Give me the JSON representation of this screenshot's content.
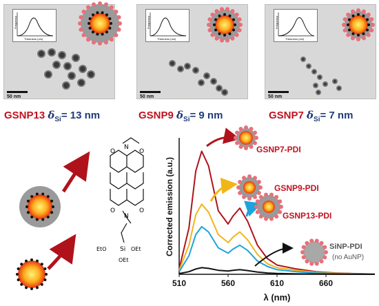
{
  "panels": [
    {
      "sample": "GSNP13",
      "delta_sub": "Si",
      "thickness": "= 13 nm",
      "scale": "50 nm",
      "inset_ylabel": "Frequency",
      "inset_xlabel": "Thickness (nm)",
      "inset_ticks": [
        "9",
        "11",
        "13",
        "15",
        "17"
      ]
    },
    {
      "sample": "GSNP9",
      "delta_sub": "Si",
      "thickness": "= 9 nm",
      "scale": "50 nm",
      "inset_ylabel": "Frequency",
      "inset_xlabel": "Thickness (nm)",
      "inset_ticks": [
        "5",
        "7",
        "9",
        "11"
      ]
    },
    {
      "sample": "GSNP7",
      "delta_sub": "Si",
      "thickness": "= 7 nm",
      "scale": "50 nm",
      "inset_ylabel": "Frequency",
      "inset_xlabel": "Thickness (nm)",
      "inset_ticks": [
        "4",
        "6",
        "8",
        "10"
      ]
    }
  ],
  "delta_symbol": "δ",
  "molecule": {
    "ring_O": "O",
    "N_top": "N",
    "N_bottom": "N",
    "Si": "Si",
    "OEt_left": "EtO",
    "OEt_right": "OEt",
    "OEt_bottom": "OEt"
  },
  "annotations": {
    "gsnp7": "GSNP7-PDI",
    "gsnp9": "GSNP9-PDI",
    "gsnp13": "GSNP13-PDI",
    "sinp": "SiNP-PDI",
    "sinp_note": "(no AuNP)"
  },
  "chart_data": {
    "type": "line",
    "xlabel": "λ (nm)",
    "ylabel": "Corrected emission (a.u.)",
    "xlim": [
      510,
      710
    ],
    "ylim": [
      0,
      1.0
    ],
    "xticks": [
      510,
      560,
      610,
      660
    ],
    "series": [
      {
        "name": "GSNP7-PDI",
        "color": "#b0121b",
        "x": [
          510,
          520,
          527,
          533,
          540,
          550,
          560,
          565,
          572,
          580,
          590,
          600,
          610,
          630,
          650,
          670,
          690,
          710
        ],
        "y": [
          0.04,
          0.35,
          0.78,
          0.93,
          0.82,
          0.48,
          0.38,
          0.44,
          0.5,
          0.4,
          0.22,
          0.12,
          0.07,
          0.04,
          0.02,
          0.01,
          0.005,
          0.002
        ]
      },
      {
        "name": "GSNP9-PDI",
        "color": "#f0b619",
        "x": [
          510,
          520,
          527,
          533,
          540,
          550,
          560,
          565,
          572,
          580,
          590,
          600,
          610,
          630,
          650,
          670,
          690,
          710
        ],
        "y": [
          0.03,
          0.22,
          0.45,
          0.53,
          0.47,
          0.3,
          0.24,
          0.28,
          0.32,
          0.26,
          0.15,
          0.08,
          0.05,
          0.03,
          0.015,
          0.008,
          0.004,
          0.002
        ]
      },
      {
        "name": "GSNP13-PDI",
        "color": "#1fa3dc",
        "x": [
          510,
          520,
          527,
          533,
          540,
          550,
          560,
          565,
          572,
          580,
          590,
          600,
          610,
          630,
          650,
          670,
          690,
          710
        ],
        "y": [
          0.02,
          0.14,
          0.3,
          0.36,
          0.32,
          0.2,
          0.16,
          0.19,
          0.22,
          0.18,
          0.1,
          0.06,
          0.035,
          0.02,
          0.01,
          0.005,
          0.003,
          0.001
        ]
      },
      {
        "name": "SiNP-PDI",
        "color": "#111111",
        "x": [
          510,
          520,
          527,
          533,
          540,
          550,
          560,
          565,
          572,
          580,
          590,
          600,
          610,
          630,
          650,
          670,
          690,
          710
        ],
        "y": [
          0.005,
          0.02,
          0.04,
          0.05,
          0.045,
          0.03,
          0.025,
          0.03,
          0.035,
          0.028,
          0.017,
          0.01,
          0.006,
          0.003,
          0.002,
          0.001,
          0.0005,
          0.0002
        ]
      }
    ]
  },
  "colors": {
    "red": "#c0121f",
    "navy": "#1f3a7a",
    "gold": "#f0b619",
    "blue": "#1fa3dc"
  }
}
